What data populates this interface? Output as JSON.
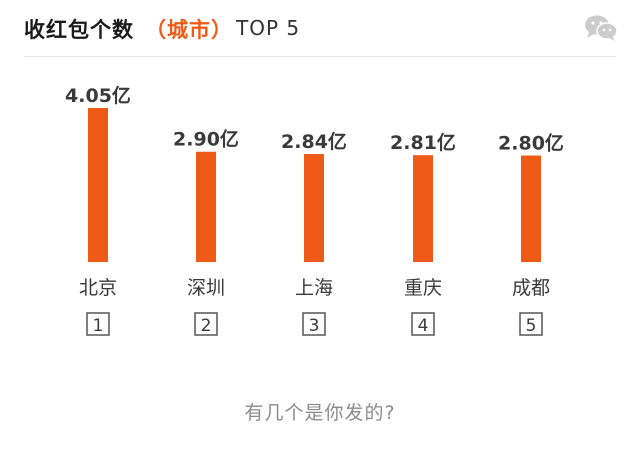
{
  "header": {
    "title_main": "收红包个数",
    "title_sub": "（城市）",
    "title_top": "TOP 5",
    "icon": "wechat-icon"
  },
  "colors": {
    "bar": "#ef5b16",
    "accent": "#ef5b16",
    "label": "#3a3a3a",
    "rank_border": "#555555"
  },
  "chart_data": {
    "type": "bar",
    "categories": [
      "北京",
      "深圳",
      "上海",
      "重庆",
      "成都"
    ],
    "values": [
      4.05,
      2.9,
      2.84,
      2.81,
      2.8
    ],
    "data_labels": [
      "4.05亿",
      "2.90亿",
      "2.84亿",
      "2.81亿",
      "2.80亿"
    ],
    "ranks": [
      "1",
      "2",
      "3",
      "4",
      "5"
    ],
    "unit": "亿",
    "title": "收红包个数（城市）TOP 5",
    "xlabel": "",
    "ylabel": "",
    "ylim": [
      0,
      4.05
    ],
    "grid": false,
    "legend": "none"
  },
  "footer": {
    "question": "有几个是你发的?"
  }
}
